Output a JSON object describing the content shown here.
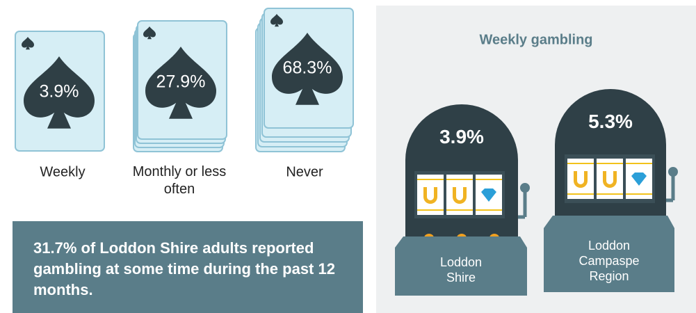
{
  "cards": [
    {
      "value": "3.9%",
      "label": "Weekly"
    },
    {
      "value": "27.9%",
      "label": "Monthly or less often"
    },
    {
      "value": "68.3%",
      "label": "Never"
    }
  ],
  "banner": "31.7% of Loddon Shire adults reported gambling at some time during the past 12 months.",
  "panel": {
    "title": "Weekly gambling",
    "machines": [
      {
        "value": "3.9%",
        "label": "Loddon Shire"
      },
      {
        "value": "5.3%",
        "label": "Loddon Campaspe Region"
      }
    ]
  }
}
